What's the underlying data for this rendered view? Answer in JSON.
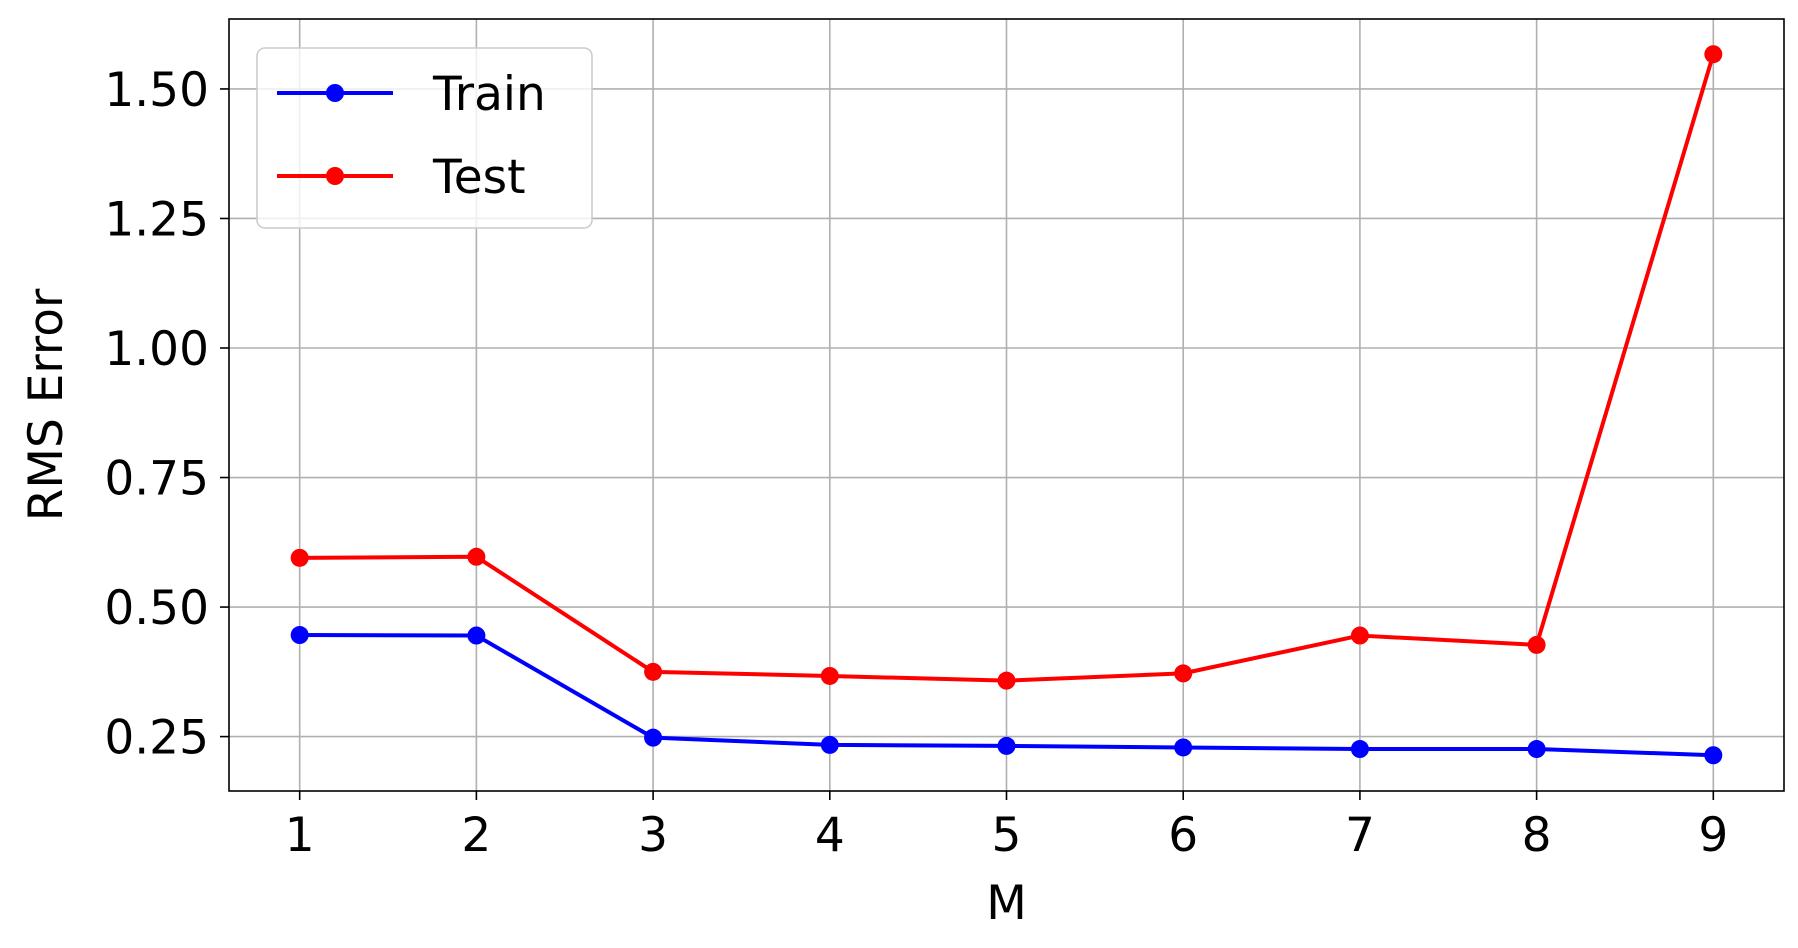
{
  "chart_data": {
    "type": "line",
    "title": "",
    "xlabel": "M",
    "ylabel": "RMS Error",
    "x": [
      1,
      2,
      3,
      4,
      5,
      6,
      7,
      8,
      9
    ],
    "x_tick_labels": [
      "1",
      "2",
      "3",
      "4",
      "5",
      "6",
      "7",
      "8",
      "9"
    ],
    "y_ticks": [
      0.25,
      0.5,
      0.75,
      1.0,
      1.25,
      1.5
    ],
    "y_tick_labels": [
      "0.25",
      "0.50",
      "0.75",
      "1.00",
      "1.25",
      "1.50"
    ],
    "xlim": [
      0.6,
      9.4
    ],
    "ylim": [
      0.145,
      1.635
    ],
    "grid": true,
    "legend_position": "top-left",
    "series": [
      {
        "name": "Train",
        "color": "#0000ff",
        "marker": "circle",
        "values": [
          0.446,
          0.445,
          0.248,
          0.234,
          0.232,
          0.229,
          0.226,
          0.226,
          0.214
        ]
      },
      {
        "name": "Test",
        "color": "#ff0000",
        "marker": "circle",
        "values": [
          0.595,
          0.597,
          0.375,
          0.367,
          0.358,
          0.372,
          0.445,
          0.427,
          1.567
        ]
      }
    ]
  }
}
